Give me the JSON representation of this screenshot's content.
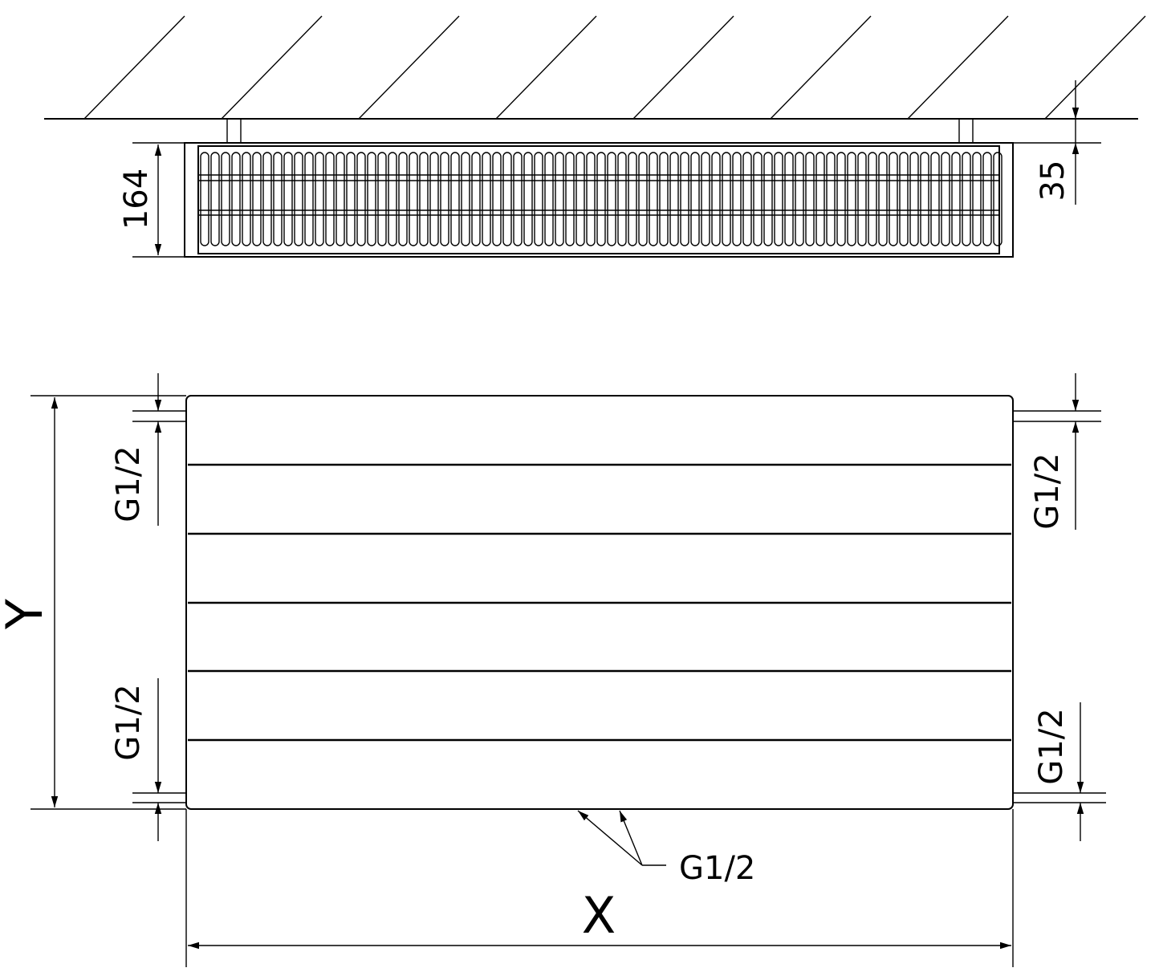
{
  "top_view": {
    "height_dim": "164",
    "offset_dim": "35"
  },
  "front_view": {
    "height_label": "Y",
    "width_label": "X",
    "connections": {
      "left_top": "G1/2",
      "left_bottom": "G1/2",
      "right_top": "G1/2",
      "right_bottom": "G1/2",
      "bottom": "G1/2"
    }
  },
  "colors": {
    "line": "#000000",
    "background": "#ffffff"
  }
}
